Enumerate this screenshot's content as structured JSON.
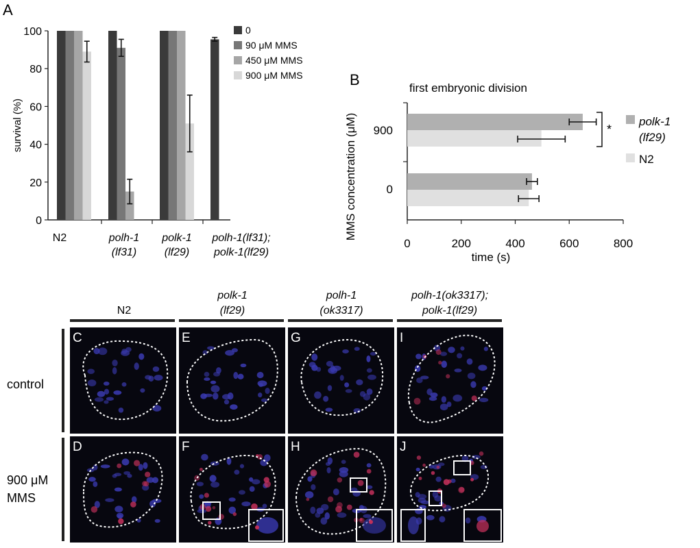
{
  "panel_letters": {
    "a": "A",
    "b": "B"
  },
  "colors": {
    "ctrl": "#3a3a3a",
    "mms90": "#777777",
    "mms450": "#a6a6a6",
    "mms900": "#d8d8d8",
    "polk1_bar": "#b0b0b0",
    "n2_bar": "#e0e0e0",
    "image_bg": "#07070f",
    "nucleus": "#3a3ab0",
    "foci": "#c0305a"
  },
  "chart_data": [
    {
      "type": "bar",
      "ylabel": "survival (%)",
      "ylim": [
        0,
        100
      ],
      "yticks": [
        0,
        20,
        40,
        60,
        80,
        100
      ],
      "categories": [
        {
          "line1": "N2",
          "line2": "",
          "italic": false
        },
        {
          "line1": "polh-1",
          "line2": "(lf31)",
          "italic": true
        },
        {
          "line1": "polk-1",
          "line2": "(lf29)",
          "italic": true
        },
        {
          "line1": "polh-1(lf31);",
          "line2": "polk-1(lf29)",
          "italic": true
        }
      ],
      "series": [
        {
          "name": "0",
          "color": "#3a3a3a",
          "values": [
            100,
            100,
            100,
            95.5
          ],
          "errors": [
            0,
            0,
            0,
            1
          ]
        },
        {
          "name": "90 μM MMS",
          "color": "#777777",
          "values": [
            100,
            91,
            100,
            null
          ],
          "errors": [
            0,
            4.5,
            0,
            0
          ]
        },
        {
          "name": "450 μM MMS",
          "color": "#a6a6a6",
          "values": [
            100,
            15,
            100,
            null
          ],
          "errors": [
            0,
            6.5,
            0,
            0
          ]
        },
        {
          "name": "900 μM MMS",
          "color": "#d8d8d8",
          "values": [
            89,
            null,
            51,
            null
          ],
          "errors": [
            5.5,
            0,
            15,
            0
          ]
        }
      ]
    },
    {
      "type": "bar",
      "orientation": "horizontal",
      "title": "first embryonic division",
      "xlabel": "time (s)",
      "ylabel": "MMS concentration (μM)",
      "xlim": [
        0,
        800
      ],
      "xticks": [
        0,
        200,
        400,
        600,
        800
      ],
      "categories": [
        "900",
        "0"
      ],
      "series": [
        {
          "name": "polk-1 (lf29)",
          "name_line1": "polk-1",
          "name_line2": "(lf29)",
          "color": "#b0b0b0",
          "values": [
            650,
            462
          ],
          "errors": [
            50,
            20
          ]
        },
        {
          "name": "N2",
          "color": "#e0e0e0",
          "values": [
            497,
            450
          ],
          "errors": [
            88,
            38
          ]
        }
      ],
      "annotation": "*"
    }
  ],
  "micrographs": {
    "columns": [
      {
        "line1": "N2",
        "line2": "",
        "italic": false
      },
      {
        "line1": "polk-1",
        "line2": "(lf29)",
        "italic": true
      },
      {
        "line1": "polh-1",
        "line2": "(ok3317)",
        "italic": true
      },
      {
        "line1": "polh-1(ok3317);",
        "line2": "polk-1(lf29)",
        "italic": true
      }
    ],
    "rows": [
      {
        "line1": "control",
        "line2": ""
      },
      {
        "line1": "900 μM",
        "line2": "MMS"
      }
    ],
    "panel_labels": [
      [
        "C",
        "E",
        "G",
        "I"
      ],
      [
        "D",
        "F",
        "H",
        "J"
      ]
    ]
  }
}
